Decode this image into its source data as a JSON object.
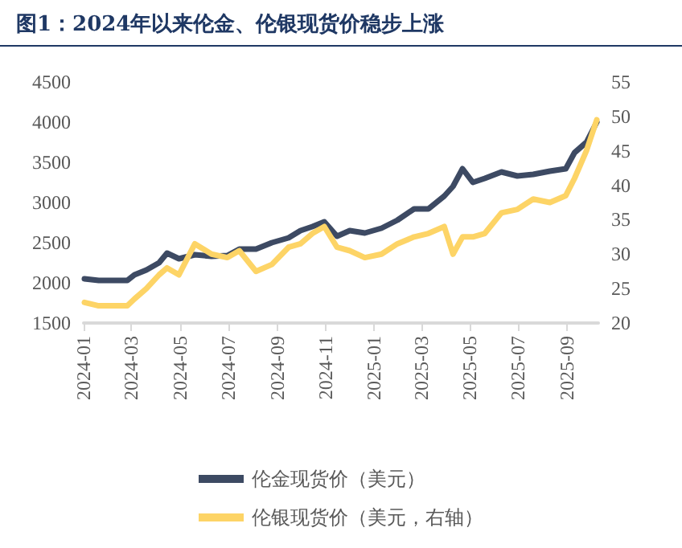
{
  "chart_data": {
    "type": "line",
    "title": "图1：2024年以来伦金、伦银现货价稳步上涨",
    "xlim": [
      "2024-01-01",
      "2025-10-10"
    ],
    "xticks": [
      "2024-01",
      "2024-03",
      "2024-05",
      "2024-07",
      "2024-09",
      "2024-11",
      "2025-01",
      "2025-03",
      "2025-05",
      "2025-07",
      "2025-09"
    ],
    "ylim": [
      1500,
      4500
    ],
    "yticks": [
      1500,
      2000,
      2500,
      3000,
      3500,
      4000,
      4500
    ],
    "y2lim": [
      20,
      55
    ],
    "y2ticks": [
      20,
      25,
      30,
      35,
      40,
      45,
      50,
      55
    ],
    "series": [
      {
        "name": "伦金现货价（美元）",
        "color": "#3d4a63",
        "x": [
          "2024-01-02",
          "2024-01-20",
          "2024-02-05",
          "2024-02-25",
          "2024-03-05",
          "2024-03-20",
          "2024-04-05",
          "2024-04-15",
          "2024-04-30",
          "2024-05-20",
          "2024-06-10",
          "2024-06-30",
          "2024-07-15",
          "2024-08-05",
          "2024-08-25",
          "2024-09-15",
          "2024-09-30",
          "2024-10-15",
          "2024-10-30",
          "2024-11-15",
          "2024-12-01",
          "2024-12-20",
          "2025-01-10",
          "2025-01-30",
          "2025-02-20",
          "2025-03-10",
          "2025-03-30",
          "2025-04-10",
          "2025-04-22",
          "2025-05-05",
          "2025-05-20",
          "2025-06-10",
          "2025-06-30",
          "2025-07-20",
          "2025-08-10",
          "2025-08-30",
          "2025-09-10",
          "2025-09-25",
          "2025-10-08"
        ],
        "values": [
          2050,
          2030,
          2030,
          2030,
          2100,
          2160,
          2250,
          2370,
          2300,
          2350,
          2330,
          2340,
          2420,
          2420,
          2500,
          2560,
          2650,
          2700,
          2760,
          2580,
          2650,
          2620,
          2680,
          2780,
          2920,
          2920,
          3080,
          3200,
          3420,
          3250,
          3300,
          3380,
          3330,
          3350,
          3390,
          3420,
          3620,
          3750,
          4000
        ]
      },
      {
        "name": "伦银现货价（美元，右轴）",
        "color": "#fdd466",
        "axis": "y2",
        "x": [
          "2024-01-02",
          "2024-01-20",
          "2024-02-05",
          "2024-02-25",
          "2024-03-05",
          "2024-03-20",
          "2024-04-05",
          "2024-04-15",
          "2024-04-30",
          "2024-05-20",
          "2024-06-10",
          "2024-06-30",
          "2024-07-15",
          "2024-08-05",
          "2024-08-25",
          "2024-09-15",
          "2024-09-30",
          "2024-10-15",
          "2024-10-30",
          "2024-11-15",
          "2024-12-01",
          "2024-12-20",
          "2025-01-10",
          "2025-01-30",
          "2025-02-20",
          "2025-03-10",
          "2025-03-30",
          "2025-04-10",
          "2025-04-22",
          "2025-05-05",
          "2025-05-20",
          "2025-06-10",
          "2025-06-30",
          "2025-07-20",
          "2025-08-10",
          "2025-08-30",
          "2025-09-10",
          "2025-09-25",
          "2025-10-08"
        ],
        "values": [
          23,
          22.5,
          22.5,
          22.5,
          23.5,
          25,
          27,
          28,
          27,
          31.5,
          30,
          29.5,
          30.5,
          27.5,
          28.5,
          31,
          31.5,
          33,
          34,
          31,
          30.5,
          29.5,
          30,
          31.5,
          32.5,
          33,
          34,
          30,
          32.5,
          32.5,
          33,
          36,
          36.5,
          38,
          37.5,
          38.5,
          41,
          45,
          49.5
        ]
      }
    ],
    "grid": false,
    "legend": "bottom",
    "marker": "none",
    "line_style": "solid"
  }
}
